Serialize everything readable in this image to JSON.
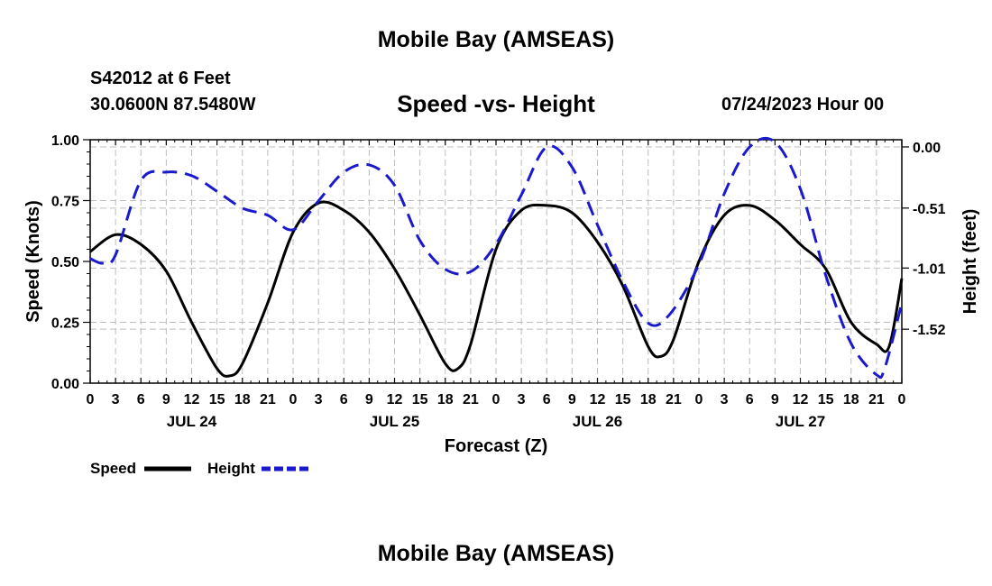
{
  "header": {
    "title": "Mobile Bay (AMSEAS)",
    "station": "S42012 at 6 Feet",
    "coords": "30.0600N  87.5480W",
    "datetime": "07/24/2023 Hour 00"
  },
  "footer": {
    "title": "Mobile Bay (AMSEAS)"
  },
  "colors": {
    "speed": "#000000",
    "height": "#1a1acc",
    "grid": "#bdbdbd"
  },
  "chart_data": {
    "type": "line",
    "title": "Speed -vs- Height",
    "xlabel": "Forecast (Z)",
    "ylabel": "Speed (Knots)",
    "y2label": "Height (feet)",
    "xlim": [
      0,
      96
    ],
    "ylim": [
      0,
      1
    ],
    "y2lim": [
      -1.97,
      0.06
    ],
    "x_tick_labels": [
      "0",
      "3",
      "6",
      "9",
      "12",
      "15",
      "18",
      "21",
      "0",
      "3",
      "6",
      "9",
      "12",
      "15",
      "18",
      "21",
      "0",
      "3",
      "6",
      "9",
      "12",
      "15",
      "18",
      "21",
      "0",
      "3",
      "6",
      "9",
      "12",
      "15",
      "18",
      "21",
      "0"
    ],
    "y_ticks": [
      0,
      0.25,
      0.5,
      0.75,
      1.0
    ],
    "y_tick_labels": [
      "0.00",
      "0.25",
      "0.50",
      "0.75",
      "1.00"
    ],
    "y2_ticks": [
      0.0,
      -0.51,
      -1.01,
      -1.52
    ],
    "y2_tick_labels": [
      "0.00",
      "-0.51",
      "-1.01",
      "-1.52"
    ],
    "day_labels": [
      {
        "x": 12,
        "label": "JUL 24"
      },
      {
        "x": 36,
        "label": "JUL 25"
      },
      {
        "x": 60,
        "label": "JUL 26"
      },
      {
        "x": 84,
        "label": "JUL 27"
      }
    ],
    "legend": {
      "speed": "Speed",
      "height": "Height"
    },
    "series": [
      {
        "name": "Speed",
        "axis": "left",
        "x": [
          0,
          3,
          6,
          9,
          12,
          15,
          16.5,
          18,
          21,
          24,
          27,
          30,
          33,
          36,
          39,
          42,
          43.5,
          45,
          48,
          51,
          54,
          57,
          60,
          63,
          66,
          67.5,
          69,
          72,
          75,
          78,
          81,
          84,
          87,
          90,
          93,
          94.5,
          96
        ],
        "values": [
          0.54,
          0.61,
          0.57,
          0.46,
          0.25,
          0.06,
          0.03,
          0.08,
          0.33,
          0.62,
          0.74,
          0.71,
          0.62,
          0.47,
          0.28,
          0.08,
          0.06,
          0.16,
          0.55,
          0.71,
          0.73,
          0.7,
          0.58,
          0.4,
          0.15,
          0.11,
          0.18,
          0.5,
          0.69,
          0.73,
          0.67,
          0.57,
          0.47,
          0.25,
          0.16,
          0.15,
          0.43
        ]
      },
      {
        "name": "Height",
        "axis": "right",
        "x": [
          0,
          1.5,
          3,
          6,
          9,
          12,
          15,
          18,
          21,
          24,
          27,
          30,
          33,
          36,
          39,
          42,
          45,
          48,
          51,
          54,
          57,
          60,
          63,
          66,
          68.5,
          72,
          75,
          78,
          81,
          84,
          87,
          90,
          93,
          94,
          96
        ],
        "values": [
          -0.93,
          -0.97,
          -0.9,
          -0.28,
          -0.21,
          -0.24,
          -0.37,
          -0.51,
          -0.57,
          -0.69,
          -0.45,
          -0.21,
          -0.15,
          -0.32,
          -0.78,
          -1.02,
          -1.04,
          -0.81,
          -0.4,
          0.0,
          -0.17,
          -0.65,
          -1.12,
          -1.47,
          -1.4,
          -0.98,
          -0.39,
          0.0,
          0.04,
          -0.35,
          -1.07,
          -1.64,
          -1.9,
          -1.84,
          -1.3
        ]
      }
    ]
  }
}
